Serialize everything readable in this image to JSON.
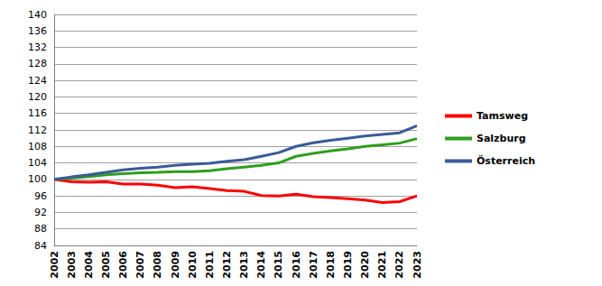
{
  "chart_data": {
    "type": "line",
    "categories": [
      "2002",
      "2003",
      "2004",
      "2005",
      "2006",
      "2007",
      "2008",
      "2009",
      "2010",
      "2011",
      "2012",
      "2013",
      "2014",
      "2015",
      "2016",
      "2017",
      "2018",
      "2019",
      "2020",
      "2021",
      "2022",
      "2023"
    ],
    "series": [
      {
        "name": "Tamsweg",
        "color": "#ff0000",
        "values": [
          100,
          99.4,
          99.3,
          99.4,
          98.9,
          98.9,
          98.6,
          98.0,
          98.2,
          97.8,
          97.3,
          97.1,
          96.1,
          96.0,
          96.4,
          95.8,
          95.6,
          95.3,
          95.0,
          94.4,
          94.6,
          96.0
        ]
      },
      {
        "name": "Salzburg",
        "color": "#2e9e1e",
        "values": [
          100,
          100.3,
          100.7,
          101.1,
          101.4,
          101.6,
          101.7,
          101.9,
          101.9,
          102.1,
          102.6,
          103.0,
          103.4,
          104.0,
          105.6,
          106.3,
          106.9,
          107.4,
          108.0,
          108.4,
          108.8,
          109.9
        ]
      },
      {
        "name": "Österreich",
        "color": "#3a5a99",
        "values": [
          100,
          100.6,
          101.1,
          101.7,
          102.3,
          102.7,
          103.0,
          103.4,
          103.7,
          103.9,
          104.4,
          104.8,
          105.6,
          106.5,
          108.0,
          108.9,
          109.5,
          110.0,
          110.5,
          110.9,
          111.3,
          113.0
        ]
      }
    ],
    "ylim": [
      84,
      140
    ],
    "yticks": [
      84,
      88,
      92,
      96,
      100,
      104,
      108,
      112,
      116,
      120,
      124,
      128,
      132,
      136,
      140
    ],
    "grid": true,
    "legend": "right"
  }
}
